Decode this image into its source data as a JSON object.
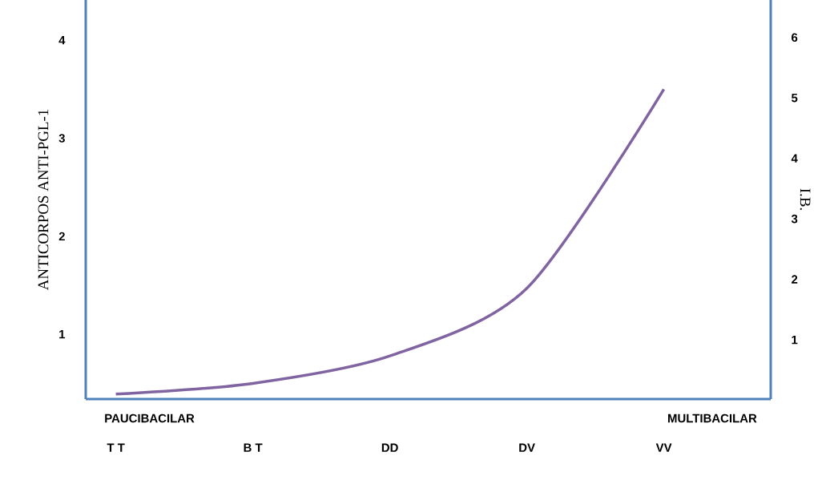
{
  "chart_data": {
    "type": "line",
    "ylabel": "ANTICORPOS ANTI-PGL-1",
    "y2label": "I.B.",
    "annotations": [
      "PAUCIBACILAR",
      "MULTIBACILAR"
    ],
    "categories": [
      "T T",
      "B T",
      "DD",
      "DV",
      "VV"
    ],
    "ylim": [
      0.34,
      4.41
    ],
    "yticks": [
      1,
      2,
      3,
      4
    ],
    "y2lim": [
      0.02,
      6.62
    ],
    "y2ticks": [
      1,
      2,
      3,
      4,
      5,
      6
    ],
    "series": [
      {
        "color": "#8064a2",
        "values": [
          0.39,
          0.5,
          0.78,
          1.47,
          3.5
        ]
      }
    ]
  }
}
